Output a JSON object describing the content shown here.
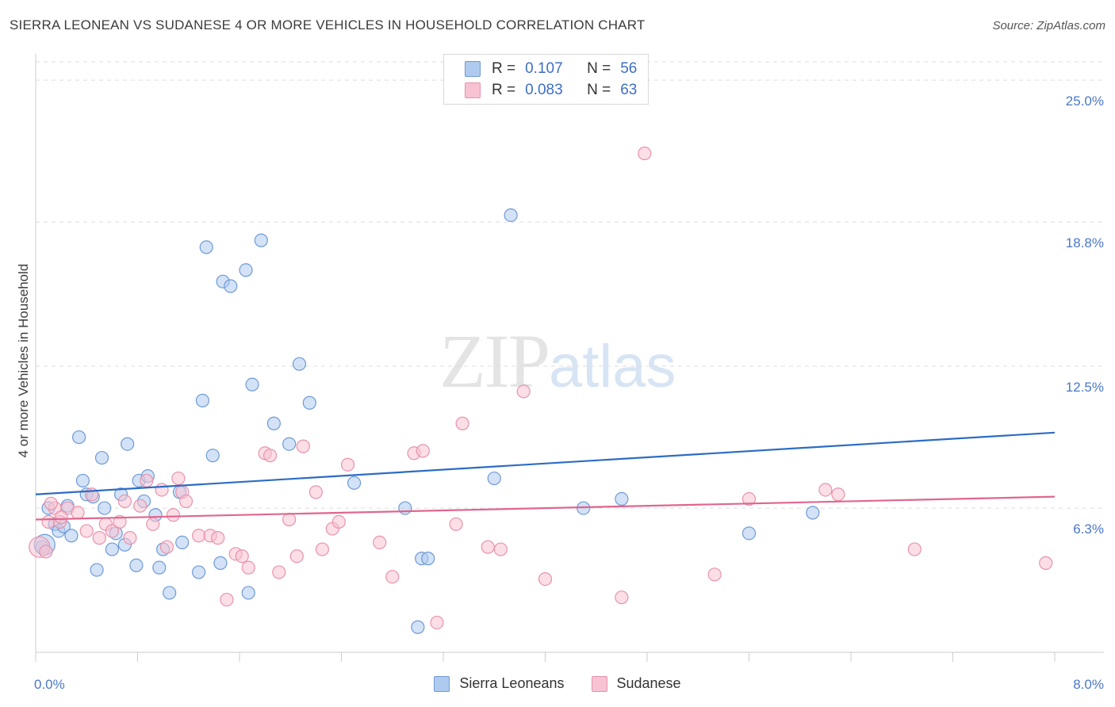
{
  "title": "SIERRA LEONEAN VS SUDANESE 4 OR MORE VEHICLES IN HOUSEHOLD CORRELATION CHART",
  "source": "Source: ZipAtlas.com",
  "watermark": {
    "zip": "ZIP",
    "atlas": "atlas"
  },
  "colors": {
    "blue_fill": "#aecbef",
    "blue_stroke": "#6f9ad6",
    "blue_line": "#2d6cc5",
    "pink_fill": "#f7c2d2",
    "pink_stroke": "#e793ad",
    "pink_line": "#e0668f",
    "tick_text": "#4a78c8",
    "grid": "#dddddd"
  },
  "legend": {
    "rows": [
      {
        "r_label": "R =",
        "r_value": "0.107",
        "n_label": "N =",
        "n_value": "56"
      },
      {
        "r_label": "R =",
        "r_value": "0.083",
        "n_label": "N =",
        "n_value": "63"
      }
    ]
  },
  "bottom_legend": [
    {
      "label": "Sierra Leoneans"
    },
    {
      "label": "Sudanese"
    }
  ],
  "chart_data": {
    "type": "scatter",
    "title": "SIERRA LEONEAN VS SUDANESE 4 OR MORE VEHICLES IN HOUSEHOLD CORRELATION CHART",
    "xlabel": "",
    "ylabel": "4 or more Vehicles in Household",
    "xlim": [
      0,
      8
    ],
    "ylim": [
      0,
      25.8
    ],
    "x_tick_labels": [
      {
        "value": 0,
        "label": "0.0%"
      },
      {
        "value": 8,
        "label": "8.0%"
      }
    ],
    "y_ticks": [
      {
        "value": 6.3,
        "label": "6.3%"
      },
      {
        "value": 12.5,
        "label": "12.5%"
      },
      {
        "value": 18.8,
        "label": "18.8%"
      },
      {
        "value": 25.0,
        "label": "25.0%"
      }
    ],
    "series": [
      {
        "name": "Sierra Leoneans",
        "r": 0.107,
        "n": 56,
        "trend": {
          "x0": 0,
          "y0": 6.9,
          "x1": 8,
          "y1": 9.6
        },
        "points": [
          [
            0.05,
            4.6
          ],
          [
            0.1,
            6.3
          ],
          [
            0.15,
            5.6
          ],
          [
            0.18,
            5.3
          ],
          [
            0.22,
            5.5
          ],
          [
            0.25,
            6.4
          ],
          [
            0.28,
            5.1
          ],
          [
            0.34,
            9.4
          ],
          [
            0.37,
            7.5
          ],
          [
            0.4,
            6.9
          ],
          [
            0.45,
            6.8
          ],
          [
            0.48,
            3.6
          ],
          [
            0.52,
            8.5
          ],
          [
            0.54,
            6.3
          ],
          [
            0.6,
            4.5
          ],
          [
            0.63,
            5.2
          ],
          [
            0.67,
            6.9
          ],
          [
            0.7,
            4.7
          ],
          [
            0.72,
            9.1
          ],
          [
            0.79,
            3.8
          ],
          [
            0.81,
            7.5
          ],
          [
            0.85,
            6.6
          ],
          [
            0.88,
            7.7
          ],
          [
            0.94,
            6.0
          ],
          [
            0.97,
            3.7
          ],
          [
            1.0,
            4.5
          ],
          [
            1.05,
            2.6
          ],
          [
            1.13,
            7.0
          ],
          [
            1.15,
            4.8
          ],
          [
            1.28,
            3.5
          ],
          [
            1.31,
            11.0
          ],
          [
            1.34,
            17.7
          ],
          [
            1.39,
            8.6
          ],
          [
            1.45,
            3.9
          ],
          [
            1.47,
            16.2
          ],
          [
            1.53,
            16.0
          ],
          [
            1.65,
            16.7
          ],
          [
            1.67,
            2.6
          ],
          [
            1.7,
            11.7
          ],
          [
            1.77,
            18.0
          ],
          [
            1.87,
            10.0
          ],
          [
            1.99,
            9.1
          ],
          [
            2.07,
            12.6
          ],
          [
            2.15,
            10.9
          ],
          [
            2.5,
            7.4
          ],
          [
            2.9,
            6.3
          ],
          [
            3.0,
            1.1
          ],
          [
            3.03,
            4.1
          ],
          [
            3.08,
            4.1
          ],
          [
            3.6,
            7.6
          ],
          [
            3.73,
            19.1
          ],
          [
            4.3,
            6.3
          ],
          [
            4.6,
            6.7
          ],
          [
            5.6,
            5.2
          ],
          [
            6.1,
            6.1
          ],
          [
            0.07,
            4.7
          ]
        ]
      },
      {
        "name": "Sudanese",
        "r": 0.083,
        "n": 63,
        "trend": {
          "x0": 0,
          "y0": 5.8,
          "x1": 8,
          "y1": 6.8
        },
        "points": [
          [
            0.03,
            4.6
          ],
          [
            0.1,
            5.7
          ],
          [
            0.15,
            6.3
          ],
          [
            0.19,
            5.7
          ],
          [
            0.25,
            6.3
          ],
          [
            0.33,
            6.1
          ],
          [
            0.4,
            5.3
          ],
          [
            0.44,
            6.9
          ],
          [
            0.5,
            5.0
          ],
          [
            0.55,
            5.6
          ],
          [
            0.6,
            5.3
          ],
          [
            0.66,
            5.7
          ],
          [
            0.7,
            6.6
          ],
          [
            0.74,
            5.0
          ],
          [
            0.82,
            6.4
          ],
          [
            0.87,
            7.5
          ],
          [
            0.92,
            5.6
          ],
          [
            0.99,
            7.1
          ],
          [
            1.03,
            4.6
          ],
          [
            1.08,
            6.0
          ],
          [
            1.12,
            7.6
          ],
          [
            1.15,
            7.0
          ],
          [
            1.18,
            6.6
          ],
          [
            1.28,
            5.1
          ],
          [
            1.37,
            5.1
          ],
          [
            1.43,
            5.0
          ],
          [
            1.5,
            2.3
          ],
          [
            1.57,
            4.3
          ],
          [
            1.62,
            4.2
          ],
          [
            1.67,
            3.7
          ],
          [
            1.8,
            8.7
          ],
          [
            1.84,
            8.6
          ],
          [
            1.91,
            3.5
          ],
          [
            1.99,
            5.8
          ],
          [
            2.05,
            4.2
          ],
          [
            2.1,
            9.0
          ],
          [
            2.2,
            7.0
          ],
          [
            2.25,
            4.5
          ],
          [
            2.33,
            5.4
          ],
          [
            2.38,
            5.7
          ],
          [
            2.45,
            8.2
          ],
          [
            2.7,
            4.8
          ],
          [
            2.8,
            3.3
          ],
          [
            2.97,
            8.7
          ],
          [
            3.04,
            8.8
          ],
          [
            3.15,
            1.3
          ],
          [
            3.3,
            5.6
          ],
          [
            3.35,
            10.0
          ],
          [
            3.55,
            4.6
          ],
          [
            3.65,
            4.5
          ],
          [
            3.83,
            11.4
          ],
          [
            4.0,
            3.2
          ],
          [
            4.6,
            2.4
          ],
          [
            4.78,
            21.8
          ],
          [
            5.33,
            3.4
          ],
          [
            5.6,
            6.7
          ],
          [
            6.2,
            7.1
          ],
          [
            6.3,
            6.9
          ],
          [
            6.9,
            4.5
          ],
          [
            7.93,
            3.9
          ],
          [
            0.08,
            4.4
          ],
          [
            0.12,
            6.5
          ],
          [
            0.2,
            5.9
          ]
        ]
      }
    ]
  }
}
